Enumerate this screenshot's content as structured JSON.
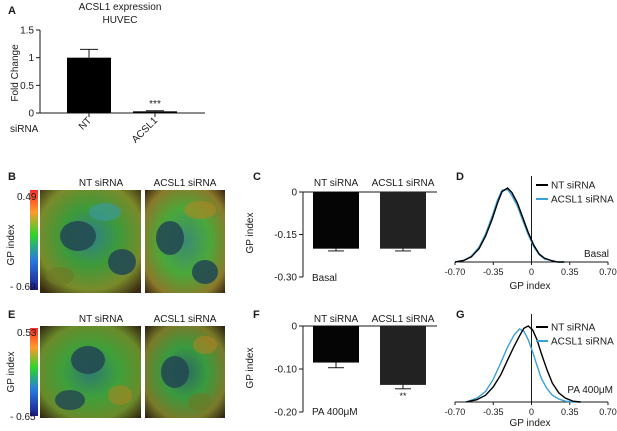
{
  "chart_data": [
    {
      "panel": "A",
      "type": "bar",
      "title": "ACSL1 expression",
      "subtitle": "HUVEC",
      "ylabel": "Fold Change",
      "group_label": "siRNA",
      "categories": [
        "NT",
        "ACSL1"
      ],
      "values": [
        1.0,
        0.03
      ],
      "errors": [
        0.15,
        0.01
      ],
      "annotations": [
        "",
        "***"
      ],
      "ylim": [
        0,
        1.5
      ],
      "yticks": [
        "0",
        "0.5",
        "1",
        "1.5"
      ],
      "bar_colors": [
        "#000000",
        "#000000"
      ]
    },
    {
      "panel": "C",
      "type": "bar",
      "ylabel": "GP index",
      "categories": [
        "NT siRNA",
        "ACSL1 siRNA"
      ],
      "values": [
        -0.2,
        -0.2
      ],
      "errors": [
        0.008,
        0.008
      ],
      "ylim": [
        -0.3,
        0
      ],
      "yticks": [
        "0",
        "-0.15",
        "-0.30"
      ],
      "condition": "Basal",
      "bar_colors": [
        "#050505",
        "#222222"
      ]
    },
    {
      "panel": "D",
      "type": "line",
      "xlabel": "GP index",
      "xticks": [
        "-0.70",
        "-0.35",
        "0",
        "0.35",
        "0.70"
      ],
      "xlim": [
        -0.7,
        0.7
      ],
      "condition": "Basal",
      "series": [
        {
          "name": "NT siRNA",
          "color": "#000000",
          "x": [
            -0.7,
            -0.62,
            -0.55,
            -0.48,
            -0.42,
            -0.36,
            -0.31,
            -0.27,
            -0.22,
            -0.18,
            -0.13,
            -0.08,
            -0.03,
            0.02,
            0.07,
            0.12,
            0.18,
            0.24,
            0.3
          ],
          "y": [
            0,
            0.02,
            0.07,
            0.18,
            0.35,
            0.58,
            0.8,
            0.95,
            1.0,
            0.94,
            0.8,
            0.6,
            0.4,
            0.23,
            0.11,
            0.05,
            0.02,
            0.0,
            0
          ]
        },
        {
          "name": "ACSL1 siRNA",
          "color": "#3aa0d8",
          "x": [
            -0.7,
            -0.62,
            -0.55,
            -0.48,
            -0.42,
            -0.36,
            -0.31,
            -0.27,
            -0.22,
            -0.18,
            -0.13,
            -0.08,
            -0.03,
            0.02,
            0.07,
            0.12,
            0.18,
            0.24,
            0.3
          ],
          "y": [
            0,
            0.02,
            0.08,
            0.2,
            0.38,
            0.62,
            0.84,
            0.97,
            0.98,
            0.9,
            0.76,
            0.56,
            0.37,
            0.21,
            0.1,
            0.04,
            0.02,
            0.0,
            0
          ]
        }
      ]
    },
    {
      "panel": "F",
      "type": "bar",
      "ylabel": "GP index",
      "categories": [
        "NT siRNA",
        "ACSL1 siRNA"
      ],
      "values": [
        -0.085,
        -0.137
      ],
      "errors": [
        0.012,
        0.009
      ],
      "annotations": [
        "",
        "**"
      ],
      "ylim": [
        -0.2,
        0
      ],
      "yticks": [
        "0",
        "-0.10",
        "-0.20"
      ],
      "condition": "PA 400μM",
      "bar_colors": [
        "#050505",
        "#222222"
      ]
    },
    {
      "panel": "G",
      "type": "line",
      "xlabel": "GP index",
      "xticks": [
        "-0.70",
        "-0.35",
        "0",
        "0.35",
        "0.70"
      ],
      "xlim": [
        -0.7,
        0.7
      ],
      "condition": "PA 400μM",
      "series": [
        {
          "name": "NT siRNA",
          "color": "#000000",
          "x": [
            -0.6,
            -0.5,
            -0.42,
            -0.35,
            -0.28,
            -0.22,
            -0.16,
            -0.11,
            -0.07,
            -0.03,
            0.01,
            0.05,
            0.09,
            0.14,
            0.19,
            0.25,
            0.31,
            0.38,
            0.45
          ],
          "y": [
            0,
            0.03,
            0.09,
            0.2,
            0.36,
            0.55,
            0.73,
            0.87,
            0.97,
            1.0,
            0.95,
            0.82,
            0.64,
            0.43,
            0.25,
            0.12,
            0.05,
            0.01,
            0
          ]
        },
        {
          "name": "ACSL1 siRNA",
          "color": "#3aa0d8",
          "x": [
            -0.6,
            -0.5,
            -0.42,
            -0.35,
            -0.28,
            -0.22,
            -0.16,
            -0.11,
            -0.07,
            -0.03,
            0.01,
            0.05,
            0.09,
            0.14,
            0.19,
            0.25,
            0.31,
            0.38,
            0.45
          ],
          "y": [
            0,
            0.05,
            0.14,
            0.3,
            0.52,
            0.72,
            0.88,
            0.96,
            0.93,
            0.82,
            0.66,
            0.48,
            0.31,
            0.18,
            0.09,
            0.04,
            0.01,
            0.0,
            0
          ]
        }
      ]
    }
  ],
  "image_panels": {
    "B": {
      "letter": "B",
      "scale_label": "GP index",
      "scale_max": "0.49",
      "scale_min": "- 0.69",
      "image_titles": [
        "NT siRNA",
        "ACSL1 siRNA"
      ]
    },
    "E": {
      "letter": "E",
      "scale_label": "GP index",
      "scale_max": "0.53",
      "scale_min": "- 0.65",
      "image_titles": [
        "NT siRNA",
        "ACSL1 siRNA"
      ]
    }
  },
  "panel_letters": [
    "A",
    "B",
    "C",
    "D",
    "E",
    "F",
    "G"
  ],
  "colors": {
    "axis": "#1a1a1a",
    "bar_black": "#050505",
    "bar_dark": "#222222",
    "blue_series": "#3aa0d8"
  }
}
